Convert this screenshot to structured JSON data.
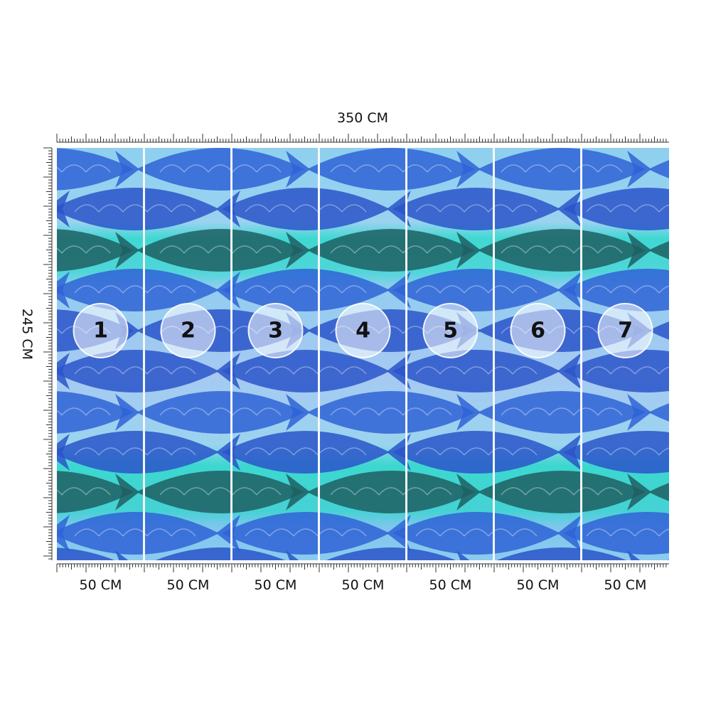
{
  "width_label": "350 CM",
  "height_label": "245 CM",
  "panels": [
    {
      "number": "1",
      "width_label": "50 CM"
    },
    {
      "number": "2",
      "width_label": "50 CM"
    },
    {
      "number": "3",
      "width_label": "50 CM"
    },
    {
      "number": "4",
      "width_label": "50 CM"
    },
    {
      "number": "5",
      "width_label": "50 CM"
    },
    {
      "number": "6",
      "width_label": "50 CM"
    },
    {
      "number": "7",
      "width_label": "50 CM"
    }
  ]
}
